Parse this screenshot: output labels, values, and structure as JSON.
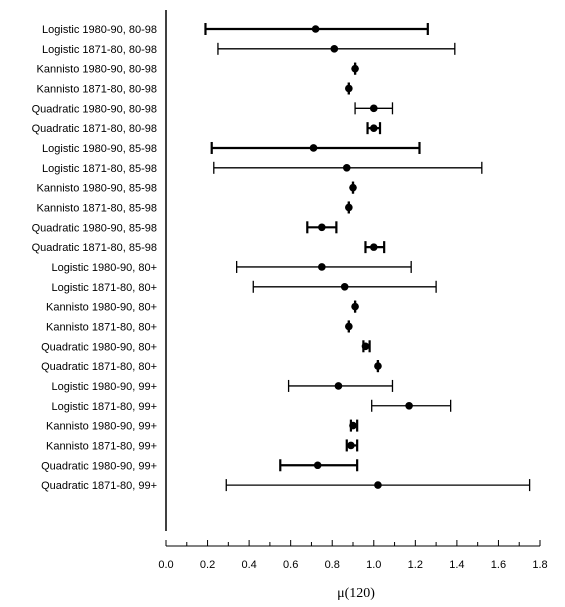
{
  "chart_data": {
    "type": "errorbar",
    "title": "",
    "xlabel": "μ(120)",
    "ylabel": "",
    "xlim": [
      0.0,
      1.8
    ],
    "x_ticks": [
      "0.0",
      "0.2",
      "0.4",
      "0.6",
      "0.8",
      "1.0",
      "1.2",
      "1.4",
      "1.6",
      "1.8"
    ],
    "grid": false,
    "legend": "none",
    "color": "#000000",
    "categories": [
      "Logistic 1980-90, 80-98",
      "Logistic 1871-80, 80-98",
      "Kannisto 1980-90, 80-98",
      "Kannisto 1871-80, 80-98",
      "Quadratic 1980-90, 80-98",
      "Quadratic 1871-80, 80-98",
      "Logistic 1980-90, 85-98",
      "Logistic 1871-80, 85-98",
      "Kannisto 1980-90, 85-98",
      "Kannisto 1871-80, 85-98",
      "Quadratic 1980-90, 85-98",
      "Quadratic 1871-80, 85-98",
      "Logistic 1980-90, 80+",
      "Logistic 1871-80, 80+",
      "Kannisto 1980-90, 80+",
      "Kannisto 1871-80, 80+",
      "Quadratic 1980-90, 80+",
      "Quadratic 1871-80, 80+",
      "Logistic 1980-90, 99+",
      "Logistic 1871-80, 99+",
      "Kannisto 1980-90, 99+",
      "Kannisto 1871-80, 99+",
      "Quadratic 1980-90, 99+",
      "Quadratic 1871-80, 99+"
    ],
    "values": [
      0.72,
      0.81,
      0.91,
      0.88,
      1.0,
      1.0,
      0.71,
      0.87,
      0.9,
      0.88,
      0.75,
      1.0,
      0.75,
      0.86,
      0.91,
      0.88,
      0.96,
      1.02,
      0.83,
      1.17,
      0.9,
      0.89,
      0.73,
      1.02
    ],
    "lower": [
      0.19,
      0.25,
      0.91,
      0.88,
      0.91,
      0.97,
      0.22,
      0.23,
      0.9,
      0.88,
      0.68,
      0.96,
      0.34,
      0.42,
      0.91,
      0.88,
      0.95,
      1.02,
      0.59,
      0.99,
      0.89,
      0.87,
      0.55,
      0.29
    ],
    "upper": [
      1.26,
      1.39,
      0.91,
      0.88,
      1.09,
      1.03,
      1.22,
      1.52,
      0.9,
      0.88,
      0.82,
      1.05,
      1.18,
      1.3,
      0.91,
      0.88,
      0.98,
      1.02,
      1.09,
      1.37,
      0.92,
      0.92,
      0.92,
      1.75
    ],
    "thick": [
      true,
      false,
      true,
      true,
      false,
      true,
      true,
      false,
      true,
      true,
      true,
      true,
      false,
      false,
      true,
      true,
      true,
      true,
      false,
      false,
      true,
      true,
      true,
      false
    ]
  }
}
